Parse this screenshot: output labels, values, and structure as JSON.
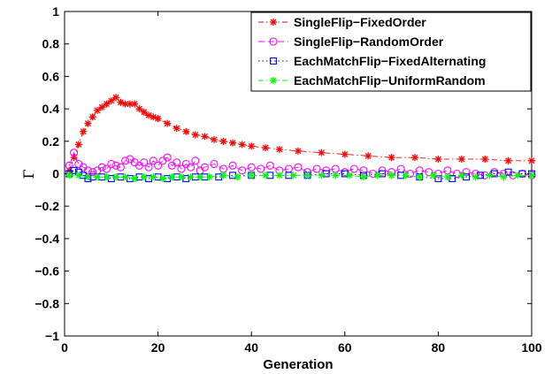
{
  "chart_data": {
    "type": "line",
    "title": "",
    "xlabel": "Generation",
    "ylabel": "Γ",
    "xlim": [
      0,
      100
    ],
    "ylim": [
      -1,
      1
    ],
    "x_ticks": [
      "0",
      "20",
      "40",
      "60",
      "80",
      "100"
    ],
    "y_ticks": [
      "−1",
      "−0.8",
      "−0.6",
      "−0.4",
      "−0.2",
      "0",
      "0.2",
      "0.4",
      "0.6",
      "0.8",
      "1"
    ],
    "grid": false,
    "legend_position": "top-right",
    "series": [
      {
        "name": "SingleFlip−FixedOrder",
        "color": "#ff0000",
        "marker": "asterisk",
        "line": "dash-dot",
        "x": [
          1,
          2,
          3,
          4,
          5,
          6,
          7,
          8,
          9,
          10,
          11,
          12,
          13,
          14,
          15,
          16,
          17,
          18,
          19,
          20,
          22,
          24,
          26,
          28,
          30,
          32,
          34,
          36,
          38,
          40,
          43,
          46,
          50,
          55,
          60,
          65,
          70,
          75,
          80,
          85,
          90,
          95,
          100
        ],
        "y": [
          0.02,
          0.1,
          0.18,
          0.26,
          0.31,
          0.35,
          0.39,
          0.41,
          0.43,
          0.45,
          0.47,
          0.44,
          0.43,
          0.43,
          0.43,
          0.4,
          0.38,
          0.36,
          0.35,
          0.34,
          0.31,
          0.28,
          0.26,
          0.24,
          0.23,
          0.21,
          0.2,
          0.19,
          0.18,
          0.17,
          0.16,
          0.15,
          0.14,
          0.13,
          0.12,
          0.11,
          0.1,
          0.1,
          0.09,
          0.09,
          0.09,
          0.08,
          0.08
        ]
      },
      {
        "name": "SingleFlip−RandomOrder",
        "color": "#ff00ff",
        "marker": "circle",
        "line": "dashed",
        "x": [
          1,
          2,
          3,
          4,
          5,
          6,
          7,
          8,
          9,
          10,
          11,
          12,
          13,
          14,
          15,
          16,
          17,
          18,
          19,
          20,
          21,
          22,
          23,
          24,
          25,
          26,
          27,
          28,
          29,
          30,
          32,
          34,
          36,
          38,
          40,
          42,
          44,
          46,
          48,
          50,
          52,
          54,
          56,
          58,
          60,
          62,
          64,
          66,
          68,
          70,
          72,
          74,
          76,
          78,
          80,
          82,
          84,
          86,
          88,
          90,
          92,
          94,
          96,
          98,
          100
        ],
        "y": [
          0.05,
          0.13,
          0.06,
          0.04,
          0.02,
          0.01,
          0.02,
          0.04,
          0.03,
          0.06,
          0.05,
          0.04,
          0.08,
          0.09,
          0.07,
          0.05,
          0.07,
          0.04,
          0.08,
          0.05,
          0.08,
          0.1,
          0.05,
          0.07,
          0.03,
          0.06,
          0.04,
          0.08,
          0.02,
          0.04,
          0.06,
          0.03,
          0.05,
          0.02,
          0.04,
          0.03,
          0.05,
          0.02,
          0.03,
          0.04,
          0.01,
          0.03,
          0.02,
          0.03,
          0.01,
          0.03,
          0.02,
          0.0,
          0.02,
          0.01,
          0.03,
          0.0,
          0.02,
          0.01,
          0.0,
          0.02,
          0.0,
          0.01,
          0.0,
          -0.01,
          0.01,
          0.0,
          -0.01,
          0.0,
          -0.01
        ]
      },
      {
        "name": "EachMatchFlip−FixedAlternating",
        "color": "#0000ff",
        "marker": "square",
        "line": "dotted",
        "x": [
          1,
          2,
          3,
          4,
          5,
          6,
          8,
          10,
          12,
          14,
          16,
          18,
          20,
          22,
          24,
          26,
          28,
          30,
          33,
          36,
          40,
          44,
          48,
          52,
          56,
          60,
          64,
          68,
          72,
          76,
          80,
          83,
          86,
          89,
          92,
          95,
          98,
          100
        ],
        "y": [
          0.0,
          0.02,
          0.01,
          -0.01,
          -0.03,
          -0.02,
          -0.02,
          -0.03,
          -0.02,
          -0.03,
          -0.02,
          -0.03,
          -0.02,
          -0.03,
          -0.02,
          -0.03,
          -0.02,
          -0.02,
          -0.02,
          -0.01,
          -0.01,
          -0.01,
          -0.01,
          -0.01,
          0.0,
          0.0,
          -0.01,
          0.0,
          -0.01,
          -0.02,
          -0.03,
          -0.03,
          -0.02,
          -0.01,
          0.0,
          0.01,
          0.0,
          0.0
        ]
      },
      {
        "name": "EachMatchFlip−UniformRandom",
        "color": "#00ff00",
        "marker": "asterisk",
        "line": "dash-dot",
        "x": [
          1,
          3,
          5,
          7,
          9,
          11,
          13,
          15,
          17,
          19,
          21,
          23,
          25,
          27,
          29,
          31,
          34,
          37,
          40,
          43,
          46,
          49,
          52,
          55,
          58,
          61,
          64,
          67,
          70,
          73,
          76,
          79,
          82,
          85,
          88,
          91,
          94,
          97,
          100
        ],
        "y": [
          -0.01,
          -0.01,
          -0.02,
          -0.02,
          -0.02,
          -0.02,
          -0.02,
          -0.03,
          -0.02,
          -0.02,
          -0.03,
          -0.02,
          -0.02,
          -0.02,
          -0.02,
          -0.02,
          -0.01,
          -0.02,
          -0.01,
          -0.01,
          -0.01,
          -0.01,
          -0.01,
          -0.01,
          -0.01,
          -0.01,
          -0.02,
          -0.01,
          -0.01,
          -0.01,
          -0.02,
          -0.01,
          -0.02,
          -0.01,
          -0.02,
          -0.01,
          -0.02,
          -0.01,
          -0.01
        ]
      }
    ]
  }
}
